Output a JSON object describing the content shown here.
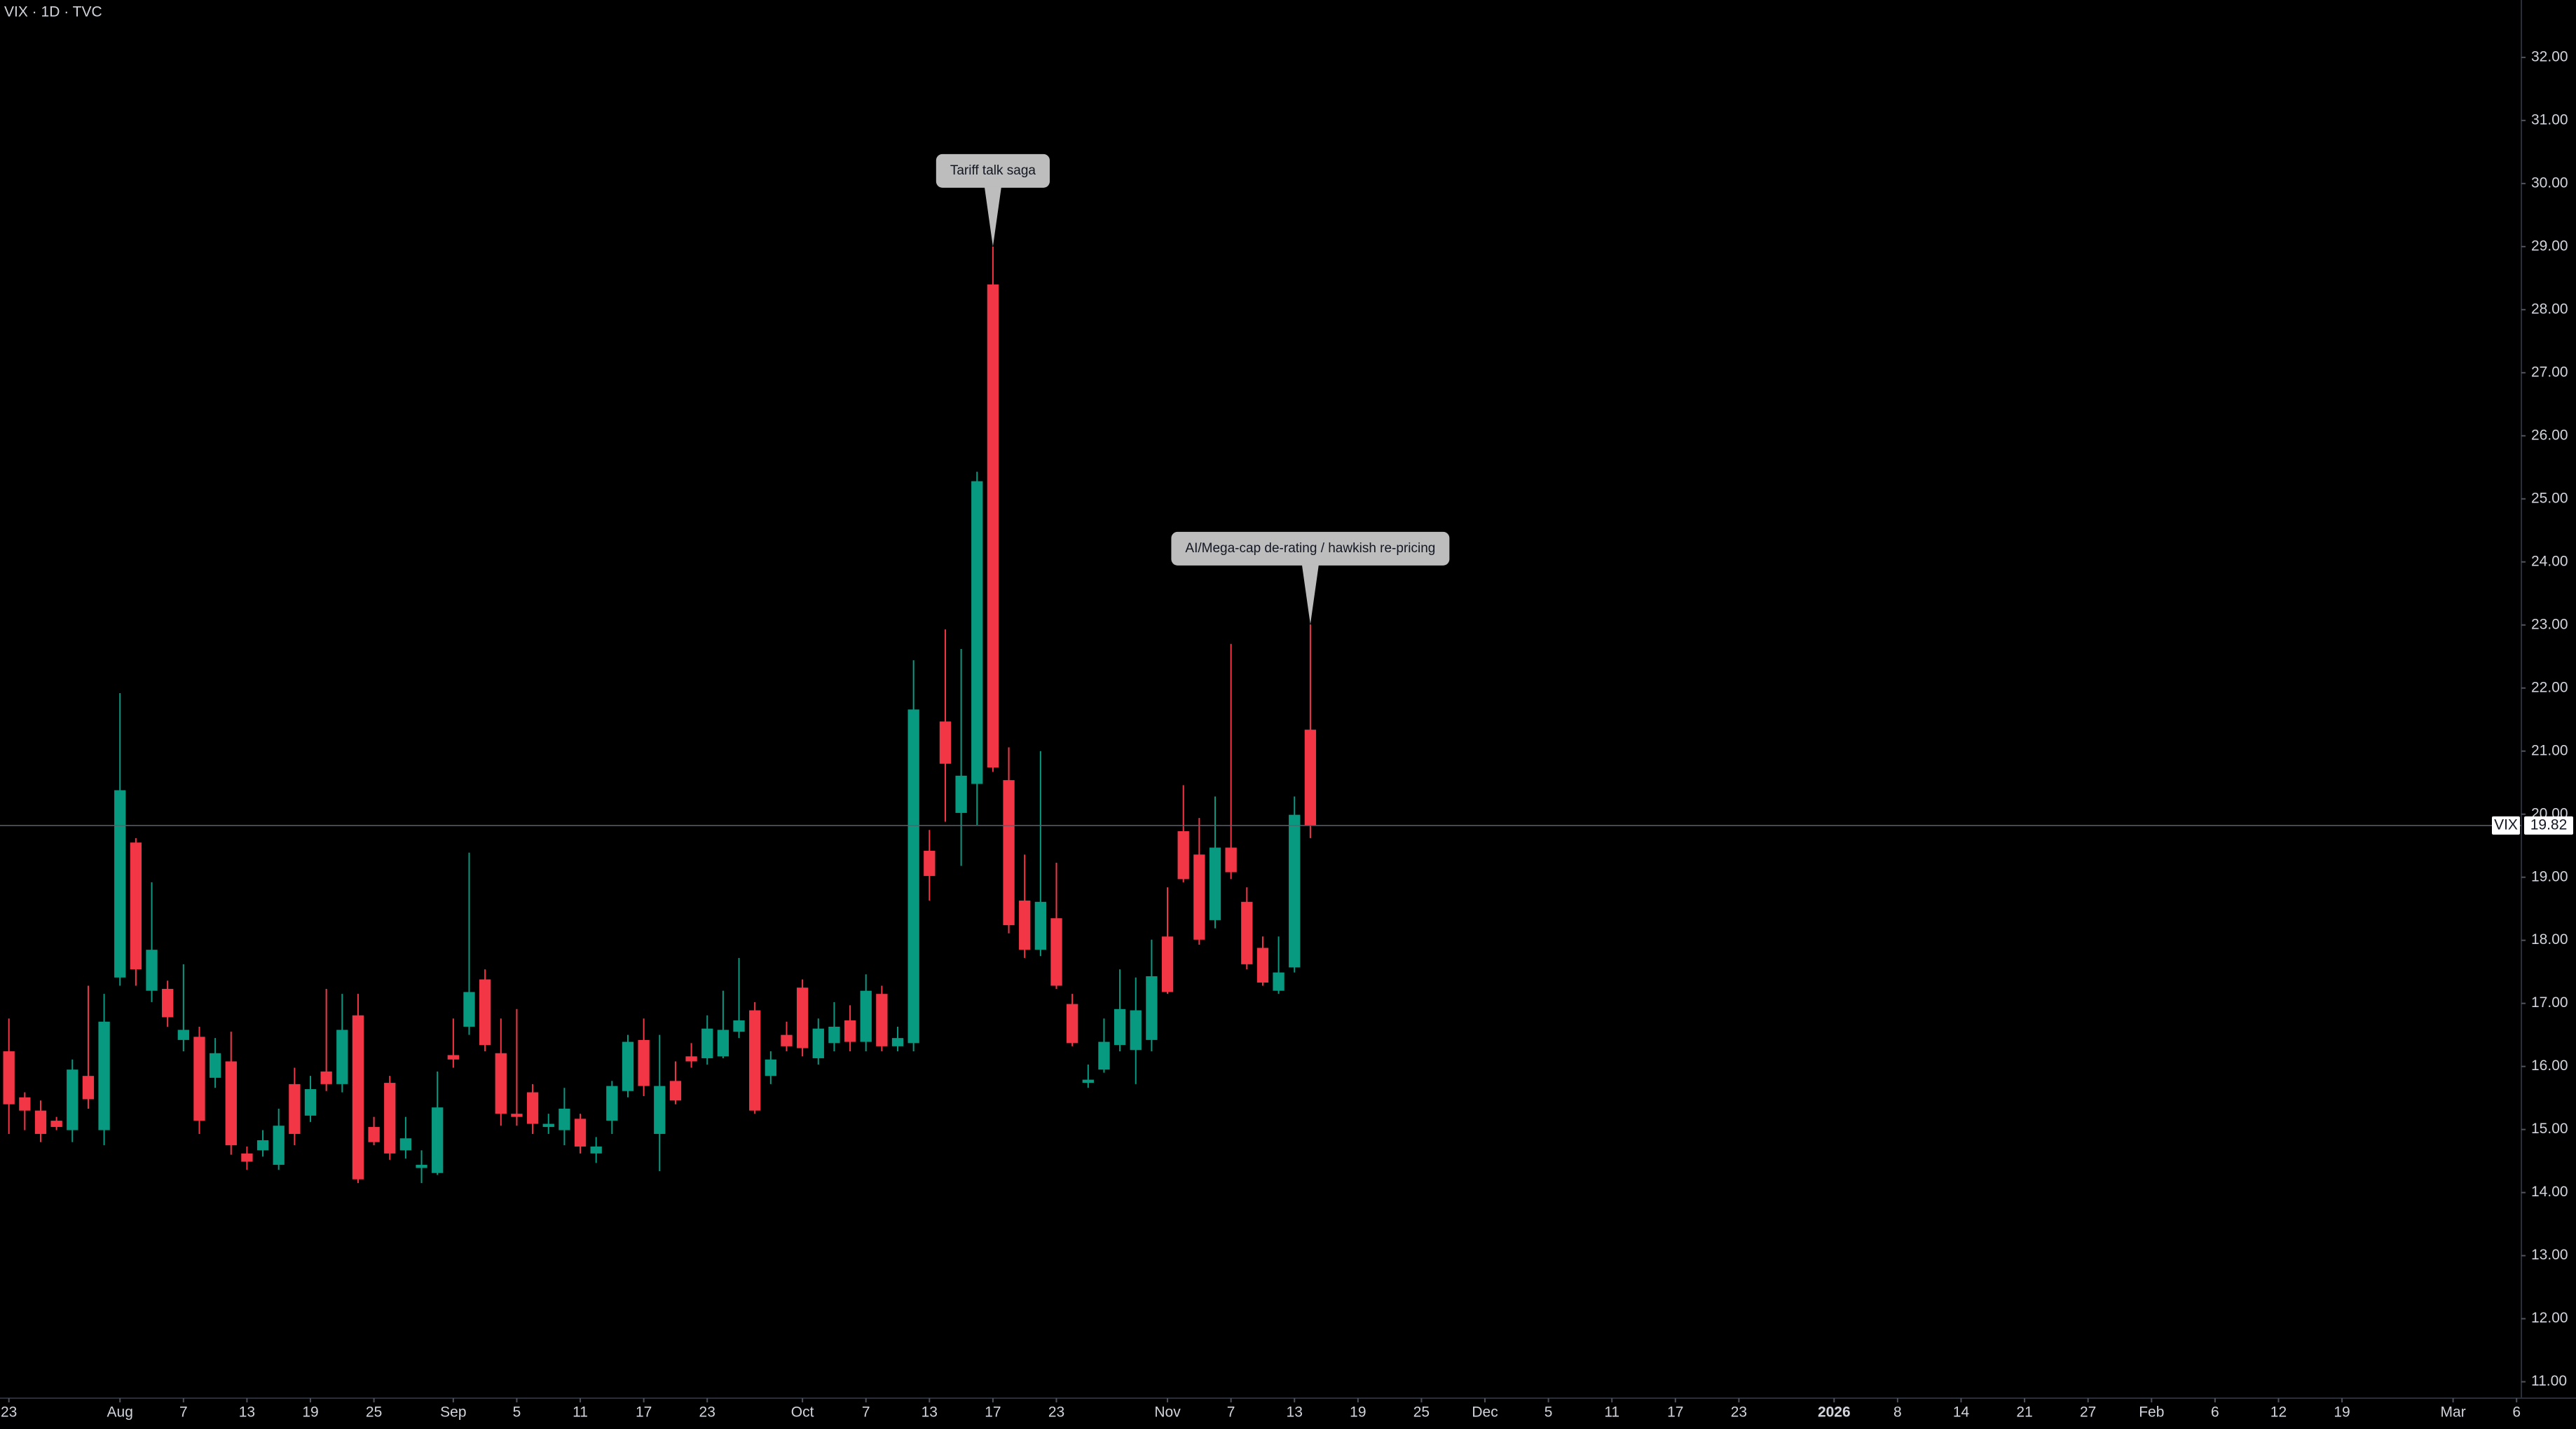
{
  "chart_data": {
    "type": "candlestick",
    "title": "VIX · 1D · TVC",
    "x": [
      0,
      1,
      2,
      3,
      4,
      5,
      6,
      7,
      8,
      9,
      10,
      11,
      12,
      13,
      14,
      15,
      16,
      17,
      18,
      19,
      20,
      21,
      22,
      23,
      24,
      25,
      26,
      27,
      28,
      29,
      30,
      31,
      32,
      33,
      34,
      35,
      36,
      37,
      38,
      39,
      40,
      41,
      42,
      43,
      44,
      45,
      46,
      47,
      48,
      49,
      50,
      51,
      52,
      53,
      54,
      55,
      56,
      57,
      58,
      59,
      60,
      61,
      62,
      63,
      64,
      65,
      66,
      67,
      68,
      69,
      70,
      71,
      72,
      73,
      74,
      75,
      76,
      77,
      78,
      79,
      80,
      81,
      82
    ],
    "series": [
      {
        "name": "VIX",
        "up_color": "#089981",
        "down_color": "#f23645",
        "open": [
          16.24,
          15.51,
          15.3,
          15.14,
          14.99,
          15.85,
          14.99,
          17.41,
          19.55,
          17.2,
          17.23,
          16.42,
          16.47,
          15.82,
          16.08,
          14.62,
          14.67,
          14.44,
          15.72,
          15.22,
          15.92,
          15.72,
          16.81,
          15.04,
          15.74,
          14.67,
          14.39,
          14.31,
          16.18,
          16.63,
          17.38,
          16.21,
          15.25,
          15.59,
          15.04,
          14.99,
          15.17,
          14.62,
          15.14,
          15.61,
          16.42,
          14.93,
          15.77,
          16.16,
          16.13,
          16.16,
          16.55,
          16.89,
          15.85,
          16.5,
          17.25,
          16.13,
          16.37,
          16.73,
          16.39,
          17.15,
          16.32,
          16.37,
          19.42,
          21.47,
          20.02,
          20.48,
          28.4,
          20.54,
          18.63,
          17.85,
          18.35,
          16.99,
          15.74,
          15.95,
          16.34,
          16.26,
          16.42,
          18.06,
          19.73,
          19.36,
          18.32,
          19.47,
          18.61,
          17.88,
          17.2,
          17.57,
          21.34
        ],
        "high": [
          16.76,
          15.59,
          15.46,
          15.2,
          16.11,
          17.28,
          17.15,
          21.92,
          19.62,
          18.92,
          17.36,
          17.62,
          16.63,
          16.45,
          16.55,
          14.73,
          14.99,
          15.33,
          15.98,
          15.85,
          17.23,
          17.15,
          17.15,
          15.2,
          15.85,
          15.2,
          14.67,
          15.92,
          16.76,
          19.39,
          17.54,
          16.76,
          16.91,
          15.72,
          15.25,
          15.66,
          15.25,
          14.88,
          15.77,
          16.5,
          16.76,
          16.5,
          16.08,
          16.37,
          16.81,
          17.2,
          17.72,
          17.02,
          16.24,
          16.71,
          17.38,
          16.76,
          17.02,
          16.97,
          17.46,
          17.28,
          16.63,
          22.44,
          19.75,
          22.93,
          22.62,
          25.43,
          29.0,
          21.06,
          19.36,
          21.0,
          19.23,
          17.15,
          16.03,
          16.76,
          17.54,
          17.41,
          18.01,
          18.84,
          20.46,
          19.94,
          20.28,
          22.7,
          18.84,
          18.06,
          18.06,
          20.28,
          23.01
        ],
        "low": [
          14.93,
          14.99,
          14.8,
          14.99,
          14.8,
          15.33,
          14.75,
          17.28,
          17.28,
          17.02,
          16.63,
          16.24,
          14.93,
          15.66,
          14.6,
          14.36,
          14.57,
          14.36,
          14.75,
          15.12,
          15.61,
          15.59,
          14.15,
          14.75,
          14.52,
          14.54,
          14.15,
          14.28,
          15.98,
          16.5,
          16.24,
          15.06,
          15.06,
          14.93,
          14.93,
          14.75,
          14.62,
          14.47,
          14.93,
          15.51,
          15.53,
          14.34,
          15.4,
          15.98,
          16.03,
          16.13,
          16.45,
          15.25,
          15.72,
          16.24,
          16.16,
          16.03,
          16.24,
          16.24,
          16.24,
          16.24,
          16.24,
          16.24,
          18.63,
          19.88,
          19.18,
          19.83,
          20.67,
          18.11,
          17.72,
          17.75,
          17.23,
          16.32,
          15.66,
          15.9,
          16.24,
          15.72,
          16.24,
          17.15,
          18.92,
          17.93,
          18.19,
          18.97,
          17.54,
          17.28,
          17.15,
          17.49,
          19.62
        ],
        "close": [
          15.4,
          15.3,
          14.93,
          15.04,
          15.95,
          15.48,
          16.71,
          20.38,
          17.54,
          17.85,
          16.78,
          16.58,
          15.14,
          16.21,
          14.75,
          14.49,
          14.83,
          15.06,
          14.93,
          15.64,
          15.72,
          16.58,
          14.21,
          14.8,
          14.62,
          14.86,
          14.44,
          15.35,
          16.11,
          17.18,
          16.34,
          15.25,
          15.2,
          15.09,
          15.09,
          15.33,
          14.73,
          14.73,
          15.69,
          16.39,
          15.69,
          15.69,
          15.46,
          16.08,
          16.6,
          16.58,
          16.73,
          15.3,
          16.11,
          16.32,
          16.29,
          16.6,
          16.63,
          16.39,
          17.2,
          16.32,
          16.45,
          21.66,
          19.02,
          20.8,
          20.61,
          25.28,
          20.74,
          18.24,
          17.85,
          18.61,
          17.28,
          16.37,
          15.79,
          16.39,
          16.91,
          16.89,
          17.43,
          17.18,
          18.97,
          18.01,
          19.47,
          19.08,
          17.62,
          17.33,
          17.49,
          19.99,
          19.82
        ]
      }
    ],
    "xlim": [
      -0.56,
      158.3
    ],
    "xticks": [
      {
        "value": 0,
        "label": "23"
      },
      {
        "value": 7,
        "label": "Aug"
      },
      {
        "value": 11,
        "label": "7"
      },
      {
        "value": 15,
        "label": "13"
      },
      {
        "value": 19,
        "label": "19"
      },
      {
        "value": 23,
        "label": "25"
      },
      {
        "value": 28,
        "label": "Sep"
      },
      {
        "value": 32,
        "label": "5"
      },
      {
        "value": 36,
        "label": "11"
      },
      {
        "value": 40,
        "label": "17"
      },
      {
        "value": 44,
        "label": "23"
      },
      {
        "value": 50,
        "label": "Oct"
      },
      {
        "value": 54,
        "label": "7"
      },
      {
        "value": 58,
        "label": "13"
      },
      {
        "value": 62,
        "label": "17"
      },
      {
        "value": 66,
        "label": "23"
      },
      {
        "value": 73,
        "label": "Nov"
      },
      {
        "value": 77,
        "label": "7"
      },
      {
        "value": 81,
        "label": "13"
      },
      {
        "value": 85,
        "label": "19"
      },
      {
        "value": 89,
        "label": "25"
      },
      {
        "value": 93,
        "label": "Dec"
      },
      {
        "value": 97,
        "label": "5"
      },
      {
        "value": 101,
        "label": "11"
      },
      {
        "value": 105,
        "label": "17"
      },
      {
        "value": 109,
        "label": "23"
      },
      {
        "value": 115,
        "label": "2026",
        "bold": true
      },
      {
        "value": 119,
        "label": "8"
      },
      {
        "value": 123,
        "label": "14"
      },
      {
        "value": 127,
        "label": "21"
      },
      {
        "value": 131,
        "label": "27"
      },
      {
        "value": 135,
        "label": "Feb"
      },
      {
        "value": 139,
        "label": "6"
      },
      {
        "value": 143,
        "label": "12"
      },
      {
        "value": 147,
        "label": "19"
      },
      {
        "value": 154,
        "label": "Mar"
      },
      {
        "value": 158,
        "label": "6"
      }
    ],
    "ylim": [
      10.74,
      32.91
    ],
    "yticks": [
      {
        "value": 11,
        "label": "11.00"
      },
      {
        "value": 12,
        "label": "12.00"
      },
      {
        "value": 13,
        "label": "13.00"
      },
      {
        "value": 14,
        "label": "14.00"
      },
      {
        "value": 15,
        "label": "15.00"
      },
      {
        "value": 16,
        "label": "16.00"
      },
      {
        "value": 17,
        "label": "17.00"
      },
      {
        "value": 18,
        "label": "18.00"
      },
      {
        "value": 19,
        "label": "19.00"
      },
      {
        "value": 20,
        "label": "20.00"
      },
      {
        "value": 21,
        "label": "21.00"
      },
      {
        "value": 22,
        "label": "22.00"
      },
      {
        "value": 23,
        "label": "23.00"
      },
      {
        "value": 24,
        "label": "24.00"
      },
      {
        "value": 25,
        "label": "25.00"
      },
      {
        "value": 26,
        "label": "26.00"
      },
      {
        "value": 27,
        "label": "27.00"
      },
      {
        "value": 28,
        "label": "28.00"
      },
      {
        "value": 29,
        "label": "29.00"
      },
      {
        "value": 30,
        "label": "30.00"
      },
      {
        "value": 31,
        "label": "31.00"
      },
      {
        "value": 32,
        "label": "32.00"
      }
    ],
    "grid": false,
    "annotations": [
      {
        "text": "Tariff talk saga",
        "x": 62
      },
      {
        "text": "AI/Mega-cap de-rating / hawkish re-pricing",
        "x": 82
      }
    ]
  }
}
